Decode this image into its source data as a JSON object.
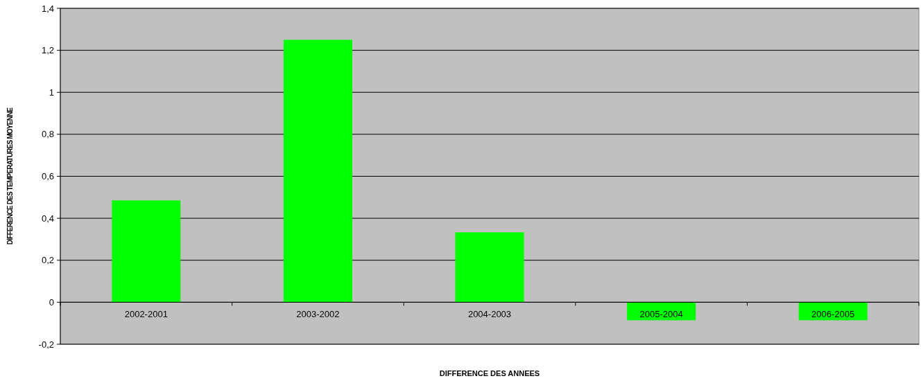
{
  "chart_data": {
    "type": "bar",
    "xlabel": "DIFFERENCE DES ANNEES",
    "ylabel": "DIFFERENCE DES TEMPERATURES MOYENNE",
    "categories": [
      "2002-2001",
      "2003-2002",
      "2004-2003",
      "2005-2004",
      "2006-2005"
    ],
    "values": [
      0.485,
      1.25,
      0.333,
      -0.086,
      -0.086
    ],
    "color": "#00ff00",
    "ylim": [
      -0.2,
      1.4
    ],
    "yticks": [
      {
        "value": -0.2,
        "label": "-0,2"
      },
      {
        "value": 0,
        "label": "0"
      },
      {
        "value": 0.2,
        "label": "0,2"
      },
      {
        "value": 0.4,
        "label": "0,4"
      },
      {
        "value": 0.6,
        "label": "0,6"
      },
      {
        "value": 0.8,
        "label": "0,8"
      },
      {
        "value": 1,
        "label": "1"
      },
      {
        "value": 1.2,
        "label": "1,2"
      },
      {
        "value": 1.4,
        "label": "1,4"
      }
    ],
    "grid": "y"
  }
}
